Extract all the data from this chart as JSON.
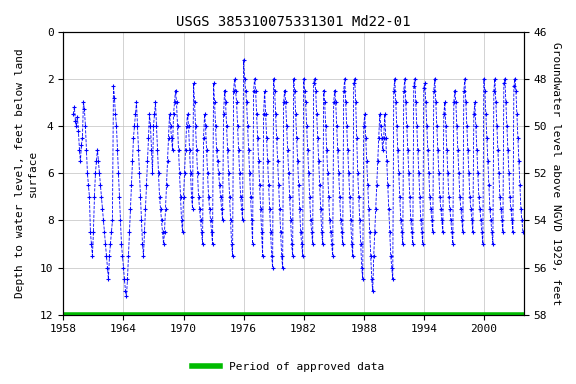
{
  "title": "USGS 385310075331301 Md22-01",
  "ylabel_left": "Depth to water level, feet below land\nsurface",
  "ylabel_right": "Groundwater level above NGVD 1929, feet",
  "xlim": [
    1958,
    2004
  ],
  "ylim_left": [
    0,
    12
  ],
  "ylim_right": [
    58,
    46
  ],
  "yticks_left": [
    0,
    2,
    4,
    6,
    8,
    10,
    12
  ],
  "yticks_right": [
    58,
    56,
    54,
    52,
    50,
    48,
    46
  ],
  "ytick_labels_right": [
    "58",
    "56",
    "54",
    "52",
    "50",
    "48",
    "46"
  ],
  "xticks": [
    1958,
    1964,
    1970,
    1976,
    1982,
    1988,
    1994,
    2000
  ],
  "data_color": "#0000FF",
  "approved_color": "#00BB00",
  "background_color": "#FFFFFF",
  "grid_color": "#C0C0C0",
  "title_fontsize": 10,
  "axis_fontsize": 8,
  "tick_fontsize": 8,
  "legend_label": "Period of approved data",
  "data_points": [
    [
      1959.0,
      3.5
    ],
    [
      1959.1,
      3.2
    ],
    [
      1959.2,
      3.8
    ],
    [
      1959.3,
      4.0
    ],
    [
      1959.4,
      3.6
    ],
    [
      1959.5,
      4.2
    ],
    [
      1959.6,
      5.0
    ],
    [
      1959.7,
      5.5
    ],
    [
      1959.8,
      4.8
    ],
    [
      1959.9,
      4.5
    ],
    [
      1960.0,
      3.0
    ],
    [
      1960.1,
      3.3
    ],
    [
      1960.2,
      4.0
    ],
    [
      1960.3,
      5.0
    ],
    [
      1960.4,
      6.0
    ],
    [
      1960.5,
      6.5
    ],
    [
      1960.6,
      7.0
    ],
    [
      1960.7,
      8.5
    ],
    [
      1960.8,
      9.0
    ],
    [
      1960.9,
      9.5
    ],
    [
      1961.0,
      8.5
    ],
    [
      1961.1,
      7.0
    ],
    [
      1961.2,
      6.0
    ],
    [
      1961.3,
      5.5
    ],
    [
      1961.4,
      5.0
    ],
    [
      1961.5,
      5.5
    ],
    [
      1961.6,
      6.0
    ],
    [
      1961.7,
      6.5
    ],
    [
      1961.8,
      7.0
    ],
    [
      1961.9,
      7.5
    ],
    [
      1962.0,
      8.0
    ],
    [
      1962.1,
      8.5
    ],
    [
      1962.2,
      9.0
    ],
    [
      1962.3,
      9.5
    ],
    [
      1962.4,
      10.0
    ],
    [
      1962.5,
      10.5
    ],
    [
      1962.6,
      9.5
    ],
    [
      1962.7,
      9.0
    ],
    [
      1962.8,
      8.5
    ],
    [
      1962.9,
      8.0
    ],
    [
      1963.0,
      2.3
    ],
    [
      1963.1,
      2.8
    ],
    [
      1963.2,
      3.5
    ],
    [
      1963.3,
      4.0
    ],
    [
      1963.4,
      5.0
    ],
    [
      1963.5,
      6.0
    ],
    [
      1963.6,
      7.0
    ],
    [
      1963.7,
      8.0
    ],
    [
      1963.8,
      9.0
    ],
    [
      1963.9,
      9.5
    ],
    [
      1964.0,
      10.0
    ],
    [
      1964.1,
      10.5
    ],
    [
      1964.2,
      11.0
    ],
    [
      1964.3,
      11.2
    ],
    [
      1964.4,
      10.5
    ],
    [
      1964.5,
      9.5
    ],
    [
      1964.6,
      8.5
    ],
    [
      1964.7,
      7.5
    ],
    [
      1964.8,
      6.5
    ],
    [
      1964.9,
      5.5
    ],
    [
      1965.0,
      4.5
    ],
    [
      1965.1,
      4.0
    ],
    [
      1965.2,
      3.5
    ],
    [
      1965.3,
      3.0
    ],
    [
      1965.4,
      4.0
    ],
    [
      1965.5,
      5.0
    ],
    [
      1965.6,
      6.0
    ],
    [
      1965.7,
      7.0
    ],
    [
      1965.8,
      8.0
    ],
    [
      1965.9,
      9.0
    ],
    [
      1966.0,
      9.5
    ],
    [
      1966.1,
      8.5
    ],
    [
      1966.2,
      7.5
    ],
    [
      1966.3,
      6.5
    ],
    [
      1966.4,
      5.5
    ],
    [
      1966.5,
      4.5
    ],
    [
      1966.6,
      3.5
    ],
    [
      1966.7,
      4.0
    ],
    [
      1966.8,
      5.0
    ],
    [
      1966.9,
      6.0
    ],
    [
      1967.0,
      4.0
    ],
    [
      1967.1,
      3.5
    ],
    [
      1967.2,
      3.0
    ],
    [
      1967.3,
      4.0
    ],
    [
      1967.4,
      5.0
    ],
    [
      1967.5,
      6.0
    ],
    [
      1967.6,
      7.0
    ],
    [
      1967.7,
      7.5
    ],
    [
      1967.8,
      8.0
    ],
    [
      1967.9,
      8.5
    ],
    [
      1968.0,
      9.0
    ],
    [
      1968.1,
      8.5
    ],
    [
      1968.2,
      7.5
    ],
    [
      1968.3,
      6.5
    ],
    [
      1968.4,
      5.5
    ],
    [
      1968.5,
      4.5
    ],
    [
      1968.6,
      3.5
    ],
    [
      1968.7,
      4.0
    ],
    [
      1968.8,
      4.5
    ],
    [
      1968.9,
      5.0
    ],
    [
      1969.0,
      3.5
    ],
    [
      1969.1,
      3.0
    ],
    [
      1969.2,
      2.5
    ],
    [
      1969.3,
      3.0
    ],
    [
      1969.4,
      4.0
    ],
    [
      1969.5,
      5.0
    ],
    [
      1969.6,
      6.0
    ],
    [
      1969.7,
      7.0
    ],
    [
      1969.8,
      8.0
    ],
    [
      1969.9,
      8.5
    ],
    [
      1970.0,
      7.0
    ],
    [
      1970.1,
      6.0
    ],
    [
      1970.2,
      5.0
    ],
    [
      1970.3,
      4.0
    ],
    [
      1970.4,
      3.5
    ],
    [
      1970.5,
      4.0
    ],
    [
      1970.6,
      5.0
    ],
    [
      1970.7,
      6.0
    ],
    [
      1970.8,
      7.0
    ],
    [
      1970.9,
      7.5
    ],
    [
      1971.0,
      2.2
    ],
    [
      1971.1,
      3.0
    ],
    [
      1971.2,
      4.0
    ],
    [
      1971.3,
      5.0
    ],
    [
      1971.4,
      6.0
    ],
    [
      1971.5,
      7.0
    ],
    [
      1971.6,
      7.5
    ],
    [
      1971.7,
      8.0
    ],
    [
      1971.8,
      8.5
    ],
    [
      1971.9,
      9.0
    ],
    [
      1972.0,
      4.5
    ],
    [
      1972.1,
      3.5
    ],
    [
      1972.2,
      4.0
    ],
    [
      1972.3,
      5.0
    ],
    [
      1972.4,
      6.0
    ],
    [
      1972.5,
      7.0
    ],
    [
      1972.6,
      7.5
    ],
    [
      1972.7,
      8.0
    ],
    [
      1972.8,
      8.5
    ],
    [
      1972.9,
      9.0
    ],
    [
      1973.0,
      2.2
    ],
    [
      1973.1,
      3.0
    ],
    [
      1973.2,
      4.0
    ],
    [
      1973.3,
      5.0
    ],
    [
      1973.4,
      5.5
    ],
    [
      1973.5,
      6.0
    ],
    [
      1973.6,
      6.5
    ],
    [
      1973.7,
      7.0
    ],
    [
      1973.8,
      7.5
    ],
    [
      1973.9,
      8.0
    ],
    [
      1974.0,
      3.5
    ],
    [
      1974.1,
      2.5
    ],
    [
      1974.2,
      3.0
    ],
    [
      1974.3,
      4.0
    ],
    [
      1974.4,
      5.0
    ],
    [
      1974.5,
      6.0
    ],
    [
      1974.6,
      7.0
    ],
    [
      1974.7,
      8.0
    ],
    [
      1974.8,
      9.0
    ],
    [
      1974.9,
      9.5
    ],
    [
      1975.0,
      2.5
    ],
    [
      1975.1,
      2.0
    ],
    [
      1975.2,
      2.5
    ],
    [
      1975.3,
      3.0
    ],
    [
      1975.4,
      4.0
    ],
    [
      1975.5,
      5.0
    ],
    [
      1975.6,
      6.0
    ],
    [
      1975.7,
      7.0
    ],
    [
      1975.8,
      7.5
    ],
    [
      1975.9,
      8.0
    ],
    [
      1976.0,
      1.2
    ],
    [
      1976.1,
      2.0
    ],
    [
      1976.2,
      2.5
    ],
    [
      1976.3,
      3.0
    ],
    [
      1976.4,
      4.0
    ],
    [
      1976.5,
      5.0
    ],
    [
      1976.6,
      6.0
    ],
    [
      1976.7,
      7.0
    ],
    [
      1976.8,
      8.0
    ],
    [
      1976.9,
      9.0
    ],
    [
      1977.0,
      2.5
    ],
    [
      1977.1,
      2.0
    ],
    [
      1977.2,
      2.5
    ],
    [
      1977.3,
      3.5
    ],
    [
      1977.4,
      4.5
    ],
    [
      1977.5,
      5.5
    ],
    [
      1977.6,
      6.5
    ],
    [
      1977.7,
      7.5
    ],
    [
      1977.8,
      8.5
    ],
    [
      1977.9,
      9.5
    ],
    [
      1978.0,
      3.5
    ],
    [
      1978.1,
      2.5
    ],
    [
      1978.2,
      3.5
    ],
    [
      1978.3,
      4.5
    ],
    [
      1978.4,
      5.5
    ],
    [
      1978.5,
      6.5
    ],
    [
      1978.6,
      7.5
    ],
    [
      1978.7,
      8.5
    ],
    [
      1978.8,
      9.5
    ],
    [
      1978.9,
      10.0
    ],
    [
      1979.0,
      2.0
    ],
    [
      1979.1,
      2.5
    ],
    [
      1979.2,
      3.5
    ],
    [
      1979.3,
      4.5
    ],
    [
      1979.4,
      5.5
    ],
    [
      1979.5,
      6.5
    ],
    [
      1979.6,
      7.5
    ],
    [
      1979.7,
      8.5
    ],
    [
      1979.8,
      9.5
    ],
    [
      1979.9,
      10.0
    ],
    [
      1980.0,
      3.0
    ],
    [
      1980.1,
      2.5
    ],
    [
      1980.2,
      3.0
    ],
    [
      1980.3,
      4.0
    ],
    [
      1980.4,
      5.0
    ],
    [
      1980.5,
      6.0
    ],
    [
      1980.6,
      7.0
    ],
    [
      1980.7,
      8.0
    ],
    [
      1980.8,
      9.0
    ],
    [
      1980.9,
      9.5
    ],
    [
      1981.0,
      2.0
    ],
    [
      1981.1,
      2.5
    ],
    [
      1981.2,
      3.5
    ],
    [
      1981.3,
      4.5
    ],
    [
      1981.4,
      5.5
    ],
    [
      1981.5,
      6.5
    ],
    [
      1981.6,
      7.5
    ],
    [
      1981.7,
      8.5
    ],
    [
      1981.8,
      9.0
    ],
    [
      1981.9,
      9.5
    ],
    [
      1982.0,
      2.0
    ],
    [
      1982.1,
      2.5
    ],
    [
      1982.2,
      3.0
    ],
    [
      1982.3,
      4.0
    ],
    [
      1982.4,
      5.0
    ],
    [
      1982.5,
      6.0
    ],
    [
      1982.6,
      7.0
    ],
    [
      1982.7,
      8.0
    ],
    [
      1982.8,
      8.5
    ],
    [
      1982.9,
      9.0
    ],
    [
      1983.0,
      2.2
    ],
    [
      1983.1,
      2.0
    ],
    [
      1983.2,
      2.5
    ],
    [
      1983.3,
      3.5
    ],
    [
      1983.4,
      4.5
    ],
    [
      1983.5,
      5.5
    ],
    [
      1983.6,
      6.5
    ],
    [
      1983.7,
      7.5
    ],
    [
      1983.8,
      8.5
    ],
    [
      1983.9,
      9.0
    ],
    [
      1984.0,
      2.5
    ],
    [
      1984.1,
      3.0
    ],
    [
      1984.2,
      4.0
    ],
    [
      1984.3,
      5.0
    ],
    [
      1984.4,
      6.0
    ],
    [
      1984.5,
      7.0
    ],
    [
      1984.6,
      8.0
    ],
    [
      1984.7,
      8.5
    ],
    [
      1984.8,
      9.0
    ],
    [
      1984.9,
      9.5
    ],
    [
      1985.0,
      3.0
    ],
    [
      1985.1,
      2.5
    ],
    [
      1985.2,
      3.0
    ],
    [
      1985.3,
      4.0
    ],
    [
      1985.4,
      5.0
    ],
    [
      1985.5,
      6.0
    ],
    [
      1985.6,
      7.0
    ],
    [
      1985.7,
      8.0
    ],
    [
      1985.8,
      8.5
    ],
    [
      1985.9,
      9.0
    ],
    [
      1986.0,
      2.5
    ],
    [
      1986.1,
      2.0
    ],
    [
      1986.2,
      3.0
    ],
    [
      1986.3,
      4.0
    ],
    [
      1986.4,
      5.0
    ],
    [
      1986.5,
      6.0
    ],
    [
      1986.6,
      7.0
    ],
    [
      1986.7,
      8.0
    ],
    [
      1986.8,
      9.0
    ],
    [
      1986.9,
      9.5
    ],
    [
      1987.0,
      2.2
    ],
    [
      1987.1,
      2.0
    ],
    [
      1987.2,
      3.0
    ],
    [
      1987.3,
      4.5
    ],
    [
      1987.4,
      6.0
    ],
    [
      1987.5,
      7.0
    ],
    [
      1987.6,
      8.0
    ],
    [
      1987.7,
      9.0
    ],
    [
      1987.8,
      10.0
    ],
    [
      1987.9,
      10.5
    ],
    [
      1988.0,
      4.0
    ],
    [
      1988.1,
      3.5
    ],
    [
      1988.2,
      4.5
    ],
    [
      1988.3,
      5.5
    ],
    [
      1988.4,
      6.5
    ],
    [
      1988.5,
      7.5
    ],
    [
      1988.6,
      8.5
    ],
    [
      1988.7,
      9.5
    ],
    [
      1988.8,
      10.5
    ],
    [
      1988.9,
      11.0
    ],
    [
      1989.0,
      9.5
    ],
    [
      1989.1,
      8.5
    ],
    [
      1989.2,
      7.5
    ],
    [
      1989.3,
      6.5
    ],
    [
      1989.4,
      5.5
    ],
    [
      1989.5,
      4.5
    ],
    [
      1989.6,
      3.5
    ],
    [
      1989.7,
      4.0
    ],
    [
      1989.8,
      4.5
    ],
    [
      1989.9,
      5.0
    ],
    [
      1990.0,
      4.5
    ],
    [
      1990.1,
      3.5
    ],
    [
      1990.2,
      4.5
    ],
    [
      1990.3,
      5.5
    ],
    [
      1990.4,
      6.5
    ],
    [
      1990.5,
      7.5
    ],
    [
      1990.6,
      8.5
    ],
    [
      1990.7,
      9.5
    ],
    [
      1990.8,
      10.0
    ],
    [
      1990.9,
      10.5
    ],
    [
      1991.0,
      2.5
    ],
    [
      1991.1,
      2.0
    ],
    [
      1991.2,
      3.0
    ],
    [
      1991.3,
      4.0
    ],
    [
      1991.4,
      5.0
    ],
    [
      1991.5,
      6.0
    ],
    [
      1991.6,
      7.0
    ],
    [
      1991.7,
      8.0
    ],
    [
      1991.8,
      8.5
    ],
    [
      1991.9,
      9.0
    ],
    [
      1992.0,
      2.5
    ],
    [
      1992.1,
      2.0
    ],
    [
      1992.2,
      3.0
    ],
    [
      1992.3,
      4.0
    ],
    [
      1992.4,
      5.0
    ],
    [
      1992.5,
      6.0
    ],
    [
      1992.6,
      7.0
    ],
    [
      1992.7,
      8.0
    ],
    [
      1992.8,
      8.5
    ],
    [
      1992.9,
      9.0
    ],
    [
      1993.0,
      2.3
    ],
    [
      1993.1,
      2.0
    ],
    [
      1993.2,
      3.0
    ],
    [
      1993.3,
      4.0
    ],
    [
      1993.4,
      5.0
    ],
    [
      1993.5,
      6.0
    ],
    [
      1993.6,
      7.0
    ],
    [
      1993.7,
      8.0
    ],
    [
      1993.8,
      8.5
    ],
    [
      1993.9,
      9.0
    ],
    [
      1994.0,
      2.4
    ],
    [
      1994.1,
      2.2
    ],
    [
      1994.2,
      3.0
    ],
    [
      1994.3,
      4.0
    ],
    [
      1994.4,
      5.0
    ],
    [
      1994.5,
      6.0
    ],
    [
      1994.6,
      7.0
    ],
    [
      1994.7,
      7.5
    ],
    [
      1994.8,
      8.0
    ],
    [
      1994.9,
      8.5
    ],
    [
      1995.0,
      2.5
    ],
    [
      1995.1,
      2.0
    ],
    [
      1995.2,
      3.0
    ],
    [
      1995.3,
      4.0
    ],
    [
      1995.4,
      5.0
    ],
    [
      1995.5,
      6.0
    ],
    [
      1995.6,
      7.0
    ],
    [
      1995.7,
      7.5
    ],
    [
      1995.8,
      8.0
    ],
    [
      1995.9,
      8.5
    ],
    [
      1996.0,
      3.5
    ],
    [
      1996.1,
      3.0
    ],
    [
      1996.2,
      4.0
    ],
    [
      1996.3,
      5.0
    ],
    [
      1996.4,
      6.0
    ],
    [
      1996.5,
      7.0
    ],
    [
      1996.6,
      7.5
    ],
    [
      1996.7,
      8.0
    ],
    [
      1996.8,
      8.5
    ],
    [
      1996.9,
      9.0
    ],
    [
      1997.0,
      3.0
    ],
    [
      1997.1,
      2.5
    ],
    [
      1997.2,
      3.0
    ],
    [
      1997.3,
      4.0
    ],
    [
      1997.4,
      5.0
    ],
    [
      1997.5,
      6.0
    ],
    [
      1997.6,
      7.0
    ],
    [
      1997.7,
      7.5
    ],
    [
      1997.8,
      8.0
    ],
    [
      1997.9,
      8.5
    ],
    [
      1998.0,
      2.5
    ],
    [
      1998.1,
      2.0
    ],
    [
      1998.2,
      3.0
    ],
    [
      1998.3,
      4.0
    ],
    [
      1998.4,
      5.0
    ],
    [
      1998.5,
      6.0
    ],
    [
      1998.6,
      7.0
    ],
    [
      1998.7,
      7.5
    ],
    [
      1998.8,
      8.0
    ],
    [
      1998.9,
      8.5
    ],
    [
      1999.0,
      3.5
    ],
    [
      1999.1,
      3.0
    ],
    [
      1999.2,
      4.0
    ],
    [
      1999.3,
      5.0
    ],
    [
      1999.4,
      6.0
    ],
    [
      1999.5,
      7.0
    ],
    [
      1999.6,
      7.5
    ],
    [
      1999.7,
      8.0
    ],
    [
      1999.8,
      8.5
    ],
    [
      1999.9,
      9.0
    ],
    [
      2000.0,
      2.0
    ],
    [
      2000.1,
      2.5
    ],
    [
      2000.2,
      3.5
    ],
    [
      2000.3,
      4.5
    ],
    [
      2000.4,
      5.5
    ],
    [
      2000.5,
      6.5
    ],
    [
      2000.6,
      7.5
    ],
    [
      2000.7,
      8.0
    ],
    [
      2000.8,
      8.5
    ],
    [
      2000.9,
      9.0
    ],
    [
      2001.0,
      2.5
    ],
    [
      2001.1,
      2.0
    ],
    [
      2001.2,
      3.0
    ],
    [
      2001.3,
      4.0
    ],
    [
      2001.4,
      5.0
    ],
    [
      2001.5,
      6.0
    ],
    [
      2001.6,
      7.0
    ],
    [
      2001.7,
      7.5
    ],
    [
      2001.8,
      8.0
    ],
    [
      2001.9,
      8.5
    ],
    [
      2002.0,
      2.2
    ],
    [
      2002.1,
      2.0
    ],
    [
      2002.2,
      3.0
    ],
    [
      2002.3,
      4.0
    ],
    [
      2002.4,
      5.0
    ],
    [
      2002.5,
      6.0
    ],
    [
      2002.6,
      7.0
    ],
    [
      2002.7,
      7.5
    ],
    [
      2002.8,
      8.0
    ],
    [
      2002.9,
      8.5
    ],
    [
      2003.0,
      2.3
    ],
    [
      2003.1,
      2.0
    ],
    [
      2003.2,
      2.5
    ],
    [
      2003.3,
      3.5
    ],
    [
      2003.4,
      4.5
    ],
    [
      2003.5,
      5.5
    ],
    [
      2003.6,
      6.5
    ],
    [
      2003.7,
      7.5
    ],
    [
      2003.8,
      8.0
    ],
    [
      2003.9,
      8.5
    ]
  ]
}
